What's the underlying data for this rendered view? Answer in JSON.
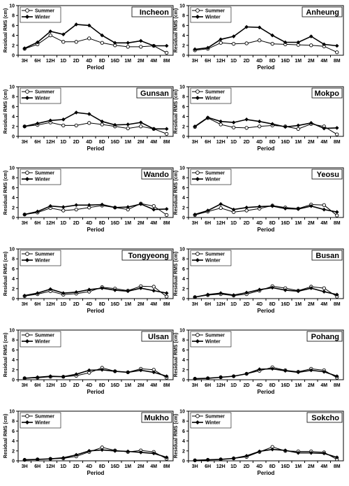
{
  "shared": {
    "ylabel": "Residual RMS (cm)",
    "xlabel": "Period",
    "yticks": [
      "0",
      "2",
      "4",
      "6",
      "8",
      "10"
    ],
    "categories": [
      "3H",
      "6H",
      "12H",
      "1D",
      "2D",
      "4D",
      "8D",
      "16D",
      "1M",
      "2M",
      "4M",
      "8M"
    ],
    "legend": [
      "Summer",
      "Winter"
    ]
  },
  "colors": {
    "summer_fill": "#ffffff",
    "winter_fill": "#000000",
    "line": "#000000"
  },
  "chart_data": [
    {
      "type": "line",
      "title": "Incheon",
      "ylim": [
        0,
        10
      ],
      "categories": [
        "3H",
        "6H",
        "12H",
        "1D",
        "2D",
        "4D",
        "8D",
        "16D",
        "1M",
        "2M",
        "4M",
        "8M"
      ],
      "series": [
        {
          "name": "Summer",
          "values": [
            1.3,
            2.2,
            4.0,
            2.7,
            2.7,
            3.4,
            2.5,
            2.0,
            1.7,
            1.7,
            1.9,
            0.5
          ]
        },
        {
          "name": "Winter",
          "values": [
            1.4,
            2.6,
            4.8,
            4.2,
            6.2,
            6.0,
            4.0,
            2.5,
            2.5,
            2.9,
            1.9,
            1.9
          ]
        }
      ]
    },
    {
      "type": "line",
      "title": "Anheung",
      "ylim": [
        0,
        10
      ],
      "categories": [
        "3H",
        "6H",
        "12H",
        "1D",
        "2D",
        "4D",
        "8D",
        "16D",
        "1M",
        "2M",
        "4M",
        "8M"
      ],
      "series": [
        {
          "name": "Summer",
          "values": [
            1.0,
            1.3,
            2.5,
            2.3,
            2.4,
            3.0,
            2.3,
            2.2,
            2.1,
            2.0,
            1.8,
            0.6
          ]
        },
        {
          "name": "Winter",
          "values": [
            1.2,
            1.5,
            3.2,
            3.8,
            5.7,
            5.6,
            4.0,
            2.6,
            2.6,
            3.8,
            2.2,
            1.9
          ]
        }
      ]
    },
    {
      "type": "line",
      "title": "Gunsan",
      "ylim": [
        0,
        10
      ],
      "categories": [
        "3H",
        "6H",
        "12H",
        "1D",
        "2D",
        "4D",
        "8D",
        "16D",
        "1M",
        "2M",
        "4M",
        "8M"
      ],
      "series": [
        {
          "name": "Summer",
          "values": [
            2.0,
            2.3,
            2.8,
            2.2,
            2.2,
            2.7,
            2.4,
            2.0,
            1.6,
            2.0,
            1.5,
            0.5
          ]
        },
        {
          "name": "Winter",
          "values": [
            2.0,
            2.6,
            3.2,
            3.4,
            4.8,
            4.5,
            3.0,
            2.3,
            2.4,
            2.8,
            1.5,
            1.5
          ]
        }
      ]
    },
    {
      "type": "line",
      "title": "Mokpo",
      "ylim": [
        0,
        10
      ],
      "categories": [
        "3H",
        "6H",
        "12H",
        "1D",
        "2D",
        "4D",
        "8D",
        "16D",
        "1M",
        "2M",
        "4M",
        "8M"
      ],
      "series": [
        {
          "name": "Summer",
          "values": [
            1.9,
            3.7,
            2.4,
            1.8,
            1.7,
            2.0,
            2.2,
            2.0,
            1.5,
            2.5,
            2.0,
            0.4
          ]
        },
        {
          "name": "Winter",
          "values": [
            2.0,
            3.8,
            3.0,
            2.8,
            3.4,
            3.0,
            2.5,
            1.9,
            2.2,
            2.7,
            1.6,
            1.7
          ]
        }
      ]
    },
    {
      "type": "line",
      "title": "Wando",
      "ylim": [
        0,
        10
      ],
      "categories": [
        "3H",
        "6H",
        "12H",
        "1D",
        "2D",
        "4D",
        "8D",
        "16D",
        "1M",
        "2M",
        "4M",
        "8M"
      ],
      "series": [
        {
          "name": "Summer",
          "values": [
            0.6,
            1.0,
            1.9,
            1.4,
            1.6,
            2.0,
            2.4,
            2.0,
            1.6,
            2.8,
            2.3,
            0.5
          ]
        },
        {
          "name": "Winter",
          "values": [
            0.6,
            1.2,
            2.3,
            2.1,
            2.5,
            2.5,
            2.6,
            2.0,
            2.1,
            2.7,
            1.6,
            1.7
          ]
        }
      ]
    },
    {
      "type": "line",
      "title": "Yeosu",
      "ylim": [
        0,
        10
      ],
      "categories": [
        "3H",
        "6H",
        "12H",
        "1D",
        "2D",
        "4D",
        "8D",
        "16D",
        "1M",
        "2M",
        "4M",
        "8M"
      ],
      "series": [
        {
          "name": "Summer",
          "values": [
            0.5,
            1.2,
            1.9,
            1.1,
            1.4,
            1.8,
            2.4,
            2.0,
            1.8,
            2.6,
            2.5,
            0.4
          ]
        },
        {
          "name": "Winter",
          "values": [
            0.6,
            1.4,
            2.7,
            1.6,
            2.0,
            2.2,
            2.3,
            1.8,
            1.7,
            2.3,
            1.6,
            1.1
          ]
        }
      ]
    },
    {
      "type": "line",
      "title": "Tongyeong",
      "ylim": [
        0,
        10
      ],
      "categories": [
        "3H",
        "6H",
        "12H",
        "1D",
        "2D",
        "4D",
        "8D",
        "16D",
        "1M",
        "2M",
        "4M",
        "8M"
      ],
      "series": [
        {
          "name": "Summer",
          "values": [
            0.5,
            0.9,
            1.5,
            0.8,
            1.0,
            1.4,
            2.3,
            2.0,
            1.6,
            2.5,
            2.4,
            0.4
          ]
        },
        {
          "name": "Winter",
          "values": [
            0.6,
            1.1,
            1.9,
            1.1,
            1.3,
            1.8,
            2.1,
            1.7,
            1.5,
            2.1,
            1.6,
            1.1
          ]
        }
      ]
    },
    {
      "type": "line",
      "title": "Busan",
      "ylim": [
        0,
        10
      ],
      "categories": [
        "3H",
        "6H",
        "12H",
        "1D",
        "2D",
        "4D",
        "8D",
        "16D",
        "1M",
        "2M",
        "4M",
        "8M"
      ],
      "series": [
        {
          "name": "Summer",
          "values": [
            0.3,
            0.7,
            0.9,
            0.6,
            0.9,
            1.6,
            2.5,
            2.1,
            1.6,
            2.4,
            2.1,
            0.4
          ]
        },
        {
          "name": "Winter",
          "values": [
            0.3,
            0.8,
            1.1,
            0.7,
            1.2,
            1.8,
            2.2,
            1.7,
            1.5,
            2.1,
            1.4,
            0.8
          ]
        }
      ]
    },
    {
      "type": "line",
      "title": "Ulsan",
      "ylim": [
        0,
        10
      ],
      "categories": [
        "3H",
        "6H",
        "12H",
        "1D",
        "2D",
        "4D",
        "8D",
        "16D",
        "1M",
        "2M",
        "4M",
        "8M"
      ],
      "series": [
        {
          "name": "Summer",
          "values": [
            0.3,
            0.4,
            0.6,
            0.6,
            0.8,
            1.4,
            2.4,
            1.7,
            1.5,
            2.2,
            2.0,
            0.4
          ]
        },
        {
          "name": "Winter",
          "values": [
            0.3,
            0.5,
            0.7,
            0.6,
            1.1,
            1.9,
            2.0,
            1.7,
            1.5,
            1.9,
            1.5,
            0.7
          ]
        }
      ]
    },
    {
      "type": "line",
      "title": "Pohang",
      "ylim": [
        0,
        10
      ],
      "categories": [
        "3H",
        "6H",
        "12H",
        "1D",
        "2D",
        "4D",
        "8D",
        "16D",
        "1M",
        "2M",
        "4M",
        "8M"
      ],
      "series": [
        {
          "name": "Summer",
          "values": [
            0.2,
            0.3,
            0.5,
            0.7,
            1.2,
            1.8,
            2.5,
            1.9,
            1.6,
            2.2,
            1.9,
            0.4
          ]
        },
        {
          "name": "Winter",
          "values": [
            0.2,
            0.3,
            0.5,
            0.7,
            1.2,
            2.1,
            2.2,
            1.8,
            1.5,
            1.9,
            1.6,
            0.7
          ]
        }
      ]
    },
    {
      "type": "line",
      "title": "Mukho",
      "ylim": [
        0,
        10
      ],
      "categories": [
        "3H",
        "6H",
        "12H",
        "1D",
        "2D",
        "4D",
        "8D",
        "16D",
        "1M",
        "2M",
        "4M",
        "8M"
      ],
      "series": [
        {
          "name": "Summer",
          "values": [
            0.2,
            0.3,
            0.4,
            0.5,
            0.9,
            1.8,
            2.7,
            2.1,
            1.8,
            2.1,
            1.8,
            0.4
          ]
        },
        {
          "name": "Winter",
          "values": [
            0.2,
            0.3,
            0.4,
            0.6,
            1.2,
            2.0,
            2.2,
            2.0,
            1.9,
            1.7,
            1.5,
            0.7
          ]
        }
      ]
    },
    {
      "type": "line",
      "title": "Sokcho",
      "ylim": [
        0,
        10
      ],
      "categories": [
        "3H",
        "6H",
        "12H",
        "1D",
        "2D",
        "4D",
        "8D",
        "16D",
        "1M",
        "2M",
        "4M",
        "8M"
      ],
      "series": [
        {
          "name": "Summer",
          "values": [
            0.1,
            0.2,
            0.3,
            0.5,
            0.8,
            1.8,
            2.8,
            2.0,
            1.9,
            1.9,
            1.7,
            0.3
          ]
        },
        {
          "name": "Winter",
          "values": [
            0.1,
            0.2,
            0.3,
            0.5,
            1.0,
            1.9,
            2.3,
            2.1,
            1.6,
            1.6,
            1.5,
            0.7
          ]
        }
      ]
    }
  ]
}
